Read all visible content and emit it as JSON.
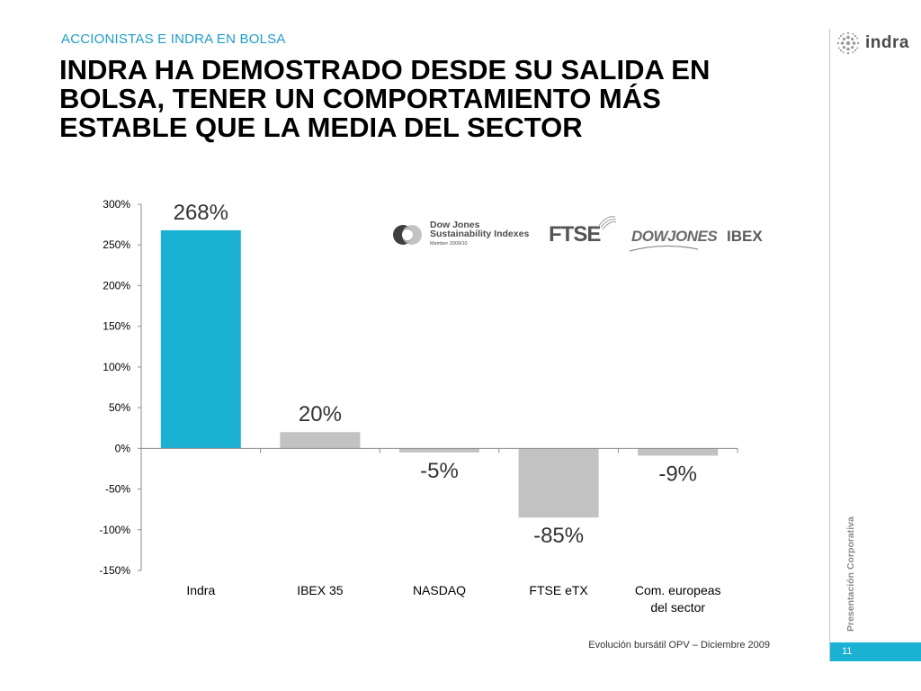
{
  "header": {
    "section_label": "ACCIONISTAS E INDRA EN BOLSA",
    "title_lines": [
      "INDRA HA DEMOSTRADO DESDE SU SALIDA EN",
      "BOLSA, TENER UN COMPORTAMIENTO MÁS",
      "ESTABLE QUE LA MEDIA DEL SECTOR"
    ]
  },
  "brand": {
    "name": "indra",
    "icon": "indra-logo-dots-icon"
  },
  "logos": {
    "djsi": {
      "line1": "Dow Jones",
      "line2": "Sustainability Indexes",
      "line3": "Member 2009/10"
    },
    "ftse": "FTSE",
    "dowjones": "DOWJONES",
    "ibex": "IBEX"
  },
  "sidebar": {
    "vertical_caption": "Presentación Corporativa"
  },
  "footer": {
    "note": "Evolución bursátil OPV – Diciembre 2009",
    "page_number": "11"
  },
  "colors": {
    "accent": "#1ab1d3",
    "bar_highlight": "#1ab1d3",
    "bar_default": "#c2c2c2",
    "title": "#000000",
    "section": "#1e9dc6"
  },
  "chart_data": {
    "type": "bar",
    "categories": [
      "Indra",
      "IBEX 35",
      "NASDAQ",
      "FTSE eTX",
      "Com. europeas del sector"
    ],
    "values": [
      268,
      20,
      -5,
      -85,
      -9
    ],
    "data_labels": [
      "268%",
      "20%",
      "-5%",
      "-85%",
      "-9%"
    ],
    "highlight_index": 0,
    "ylim": [
      -150,
      300
    ],
    "yticks": [
      300,
      250,
      200,
      150,
      100,
      50,
      0,
      -50,
      -100,
      -150
    ],
    "ytick_labels": [
      "300%",
      "250%",
      "200%",
      "150%",
      "100%",
      "50%",
      "0%",
      "-50%",
      "-100%",
      "-150%"
    ],
    "category_label_lines": [
      [
        "Indra"
      ],
      [
        "IBEX 35"
      ],
      [
        "NASDAQ"
      ],
      [
        "FTSE eTX"
      ],
      [
        "Com. europeas",
        "del sector"
      ]
    ],
    "grid": false,
    "title": "",
    "xlabel": "",
    "ylabel": ""
  }
}
